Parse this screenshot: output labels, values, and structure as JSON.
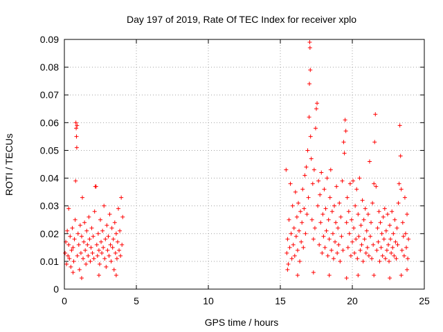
{
  "chart_data": {
    "type": "scatter",
    "title": "Day 197 of 2019, Rate Of TEC Index for receiver xplo",
    "xlabel": "GPS time / hours",
    "ylabel": "ROTI / TECUs",
    "xlim": [
      0,
      25
    ],
    "ylim": [
      0,
      0.09
    ],
    "xticks": [
      0,
      5,
      10,
      15,
      20,
      25
    ],
    "xtick_labels": [
      "0",
      "5",
      "10",
      "15",
      "20",
      "25"
    ],
    "yticks": [
      0,
      0.01,
      0.02,
      0.03,
      0.04,
      0.05,
      0.06,
      0.07,
      0.08,
      0.09
    ],
    "ytick_labels": [
      "0",
      "0.01",
      "0.02",
      "0.03",
      "0.04",
      "0.05",
      "0.06",
      "0.07",
      "0.08",
      "0.09"
    ],
    "grid": true,
    "marker": "plus",
    "color": "#ff0000",
    "series": [
      {
        "name": "ROTI",
        "points": [
          [
            0.05,
            0.013
          ],
          [
            0.1,
            0.017
          ],
          [
            0.15,
            0.009
          ],
          [
            0.2,
            0.021
          ],
          [
            0.25,
            0.012
          ],
          [
            0.3,
            0.016
          ],
          [
            0.35,
            0.011
          ],
          [
            0.4,
            0.019
          ],
          [
            0.45,
            0.008
          ],
          [
            0.5,
            0.014
          ],
          [
            0.55,
            0.022
          ],
          [
            0.6,
            0.015
          ],
          [
            0.65,
            0.01
          ],
          [
            0.7,
            0.018
          ],
          [
            0.75,
            0.025
          ],
          [
            0.78,
            0.039
          ],
          [
            0.8,
            0.06
          ],
          [
            0.82,
            0.058
          ],
          [
            0.84,
            0.055
          ],
          [
            0.86,
            0.051
          ],
          [
            0.88,
            0.059
          ],
          [
            0.9,
            0.012
          ],
          [
            0.95,
            0.02
          ],
          [
            1.0,
            0.016
          ],
          [
            1.05,
            0.007
          ],
          [
            1.1,
            0.023
          ],
          [
            1.15,
            0.013
          ],
          [
            1.2,
            0.019
          ],
          [
            1.25,
            0.033
          ],
          [
            1.3,
            0.011
          ],
          [
            1.35,
            0.017
          ],
          [
            1.4,
            0.024
          ],
          [
            1.45,
            0.014
          ],
          [
            1.5,
            0.009
          ],
          [
            1.55,
            0.021
          ],
          [
            1.6,
            0.016
          ],
          [
            1.65,
            0.012
          ],
          [
            1.7,
            0.026
          ],
          [
            1.75,
            0.018
          ],
          [
            1.8,
            0.01
          ],
          [
            1.85,
            0.015
          ],
          [
            1.9,
            0.022
          ],
          [
            1.95,
            0.013
          ],
          [
            2.0,
            0.019
          ],
          [
            2.05,
            0.011
          ],
          [
            2.1,
            0.028
          ],
          [
            2.15,
            0.037
          ],
          [
            2.2,
            0.037
          ],
          [
            2.25,
            0.016
          ],
          [
            2.3,
            0.012
          ],
          [
            2.35,
            0.02
          ],
          [
            2.4,
            0.014
          ],
          [
            2.45,
            0.009
          ],
          [
            2.5,
            0.025
          ],
          [
            2.55,
            0.017
          ],
          [
            2.6,
            0.013
          ],
          [
            2.65,
            0.021
          ],
          [
            2.7,
            0.015
          ],
          [
            2.75,
            0.03
          ],
          [
            2.8,
            0.011
          ],
          [
            2.85,
            0.018
          ],
          [
            2.9,
            0.008
          ],
          [
            2.95,
            0.023
          ],
          [
            3.0,
            0.014
          ],
          [
            3.05,
            0.019
          ],
          [
            3.1,
            0.012
          ],
          [
            3.15,
            0.027
          ],
          [
            3.2,
            0.016
          ],
          [
            3.25,
            0.01
          ],
          [
            3.3,
            0.022
          ],
          [
            3.35,
            0.015
          ],
          [
            3.4,
            0.018
          ],
          [
            3.45,
            0.007
          ],
          [
            3.5,
            0.024
          ],
          [
            3.55,
            0.013
          ],
          [
            3.6,
            0.02
          ],
          [
            3.65,
            0.011
          ],
          [
            3.7,
            0.017
          ],
          [
            3.75,
            0.029
          ],
          [
            3.8,
            0.014
          ],
          [
            3.85,
            0.021
          ],
          [
            3.9,
            0.012
          ],
          [
            3.95,
            0.033
          ],
          [
            4.0,
            0.016
          ],
          [
            4.05,
            0.026
          ],
          [
            0.3,
            0.029
          ],
          [
            0.6,
            0.006
          ],
          [
            1.2,
            0.004
          ],
          [
            2.4,
            0.005
          ],
          [
            3.6,
            0.005
          ],
          [
            15.4,
            0.043
          ],
          [
            15.45,
            0.013
          ],
          [
            15.5,
            0.018
          ],
          [
            15.55,
            0.009
          ],
          [
            15.6,
            0.025
          ],
          [
            15.65,
            0.015
          ],
          [
            15.7,
            0.038
          ],
          [
            15.75,
            0.02
          ],
          [
            15.8,
            0.011
          ],
          [
            15.85,
            0.03
          ],
          [
            15.9,
            0.016
          ],
          [
            15.95,
            0.022
          ],
          [
            16.0,
            0.012
          ],
          [
            16.05,
            0.035
          ],
          [
            16.1,
            0.019
          ],
          [
            16.15,
            0.026
          ],
          [
            16.2,
            0.014
          ],
          [
            16.25,
            0.031
          ],
          [
            16.3,
            0.021
          ],
          [
            16.35,
            0.01
          ],
          [
            16.4,
            0.028
          ],
          [
            16.45,
            0.017
          ],
          [
            16.5,
            0.024
          ],
          [
            16.55,
            0.036
          ],
          [
            16.6,
            0.015
          ],
          [
            16.65,
            0.029
          ],
          [
            16.7,
            0.041
          ],
          [
            16.75,
            0.02
          ],
          [
            16.8,
            0.044
          ],
          [
            16.85,
            0.027
          ],
          [
            16.9,
            0.05
          ],
          [
            16.95,
            0.033
          ],
          [
            17.0,
            0.062
          ],
          [
            17.02,
            0.074
          ],
          [
            17.04,
            0.089
          ],
          [
            17.06,
            0.087
          ],
          [
            17.08,
            0.079
          ],
          [
            17.1,
            0.055
          ],
          [
            17.15,
            0.047
          ],
          [
            17.2,
            0.025
          ],
          [
            17.25,
            0.038
          ],
          [
            17.3,
            0.018
          ],
          [
            17.35,
            0.043
          ],
          [
            17.4,
            0.022
          ],
          [
            17.45,
            0.058
          ],
          [
            17.5,
            0.065
          ],
          [
            17.55,
            0.067
          ],
          [
            17.6,
            0.03
          ],
          [
            17.65,
            0.039
          ],
          [
            17.7,
            0.016
          ],
          [
            17.75,
            0.034
          ],
          [
            17.8,
            0.024
          ],
          [
            17.85,
            0.042
          ],
          [
            17.9,
            0.013
          ],
          [
            17.95,
            0.027
          ],
          [
            18.0,
            0.019
          ],
          [
            18.05,
            0.036
          ],
          [
            18.1,
            0.015
          ],
          [
            18.15,
            0.029
          ],
          [
            18.2,
            0.021
          ],
          [
            18.25,
            0.04
          ],
          [
            18.3,
            0.012
          ],
          [
            18.35,
            0.025
          ],
          [
            18.4,
            0.018
          ],
          [
            18.45,
            0.033
          ],
          [
            18.5,
            0.043
          ],
          [
            18.55,
            0.014
          ],
          [
            18.6,
            0.028
          ],
          [
            18.65,
            0.02
          ],
          [
            18.7,
            0.011
          ],
          [
            18.75,
            0.03
          ],
          [
            18.8,
            0.017
          ],
          [
            18.85,
            0.024
          ],
          [
            18.9,
            0.037
          ],
          [
            18.95,
            0.013
          ],
          [
            19.0,
            0.022
          ],
          [
            19.05,
            0.016
          ],
          [
            19.1,
            0.031
          ],
          [
            19.15,
            0.01
          ],
          [
            19.2,
            0.026
          ],
          [
            19.25,
            0.019
          ],
          [
            19.3,
            0.039
          ],
          [
            19.35,
            0.014
          ],
          [
            19.4,
            0.053
          ],
          [
            19.45,
            0.049
          ],
          [
            19.5,
            0.061
          ],
          [
            19.55,
            0.057
          ],
          [
            19.6,
            0.024
          ],
          [
            19.65,
            0.033
          ],
          [
            19.7,
            0.015
          ],
          [
            19.75,
            0.028
          ],
          [
            19.8,
            0.02
          ],
          [
            19.85,
            0.038
          ],
          [
            19.9,
            0.012
          ],
          [
            19.95,
            0.025
          ],
          [
            20.0,
            0.017
          ],
          [
            20.05,
            0.039
          ],
          [
            20.1,
            0.022
          ],
          [
            20.15,
            0.013
          ],
          [
            20.2,
            0.03
          ],
          [
            20.25,
            0.018
          ],
          [
            20.3,
            0.036
          ],
          [
            20.35,
            0.011
          ],
          [
            20.4,
            0.027
          ],
          [
            20.45,
            0.019
          ],
          [
            20.5,
            0.04
          ],
          [
            20.55,
            0.014
          ],
          [
            20.6,
            0.023
          ],
          [
            20.65,
            0.016
          ],
          [
            20.7,
            0.032
          ],
          [
            20.75,
            0.01
          ],
          [
            20.8,
            0.025
          ],
          [
            20.85,
            0.018
          ],
          [
            20.9,
            0.029
          ],
          [
            20.95,
            0.013
          ],
          [
            21.0,
            0.021
          ],
          [
            21.05,
            0.015
          ],
          [
            21.1,
            0.027
          ],
          [
            21.15,
            0.012
          ],
          [
            21.2,
            0.046
          ],
          [
            21.25,
            0.019
          ],
          [
            21.3,
            0.024
          ],
          [
            21.35,
            0.011
          ],
          [
            21.4,
            0.031
          ],
          [
            21.45,
            0.016
          ],
          [
            21.5,
            0.038
          ],
          [
            21.55,
            0.053
          ],
          [
            21.6,
            0.063
          ],
          [
            21.65,
            0.037
          ],
          [
            21.7,
            0.014
          ],
          [
            21.75,
            0.022
          ],
          [
            21.8,
            0.017
          ],
          [
            21.85,
            0.028
          ],
          [
            21.9,
            0.01
          ],
          [
            21.95,
            0.024
          ],
          [
            22.0,
            0.015
          ],
          [
            22.05,
            0.02
          ],
          [
            22.1,
            0.012
          ],
          [
            22.15,
            0.026
          ],
          [
            22.2,
            0.018
          ],
          [
            22.25,
            0.029
          ],
          [
            22.3,
            0.011
          ],
          [
            22.35,
            0.021
          ],
          [
            22.4,
            0.014
          ],
          [
            22.45,
            0.027
          ],
          [
            22.5,
            0.016
          ],
          [
            22.55,
            0.01
          ],
          [
            22.6,
            0.023
          ],
          [
            22.65,
            0.018
          ],
          [
            22.7,
            0.013
          ],
          [
            22.75,
            0.028
          ],
          [
            22.8,
            0.015
          ],
          [
            22.85,
            0.02
          ],
          [
            22.9,
            0.012
          ],
          [
            22.95,
            0.025
          ],
          [
            23.0,
            0.017
          ],
          [
            23.05,
            0.011
          ],
          [
            23.1,
            0.022
          ],
          [
            23.15,
            0.016
          ],
          [
            23.2,
            0.031
          ],
          [
            23.25,
            0.038
          ],
          [
            23.3,
            0.059
          ],
          [
            23.35,
            0.048
          ],
          [
            23.4,
            0.036
          ],
          [
            23.45,
            0.014
          ],
          [
            23.5,
            0.024
          ],
          [
            23.55,
            0.019
          ],
          [
            23.6,
            0.012
          ],
          [
            23.65,
            0.033
          ],
          [
            23.7,
            0.02
          ],
          [
            23.75,
            0.015
          ],
          [
            23.8,
            0.027
          ],
          [
            23.85,
            0.011
          ],
          [
            23.9,
            0.018
          ],
          [
            15.5,
            0.007
          ],
          [
            16.2,
            0.005
          ],
          [
            17.3,
            0.006
          ],
          [
            18.4,
            0.005
          ],
          [
            19.6,
            0.004
          ],
          [
            20.4,
            0.005
          ],
          [
            21.5,
            0.005
          ],
          [
            22.6,
            0.004
          ],
          [
            23.4,
            0.005
          ],
          [
            23.8,
            0.007
          ]
        ]
      }
    ]
  }
}
